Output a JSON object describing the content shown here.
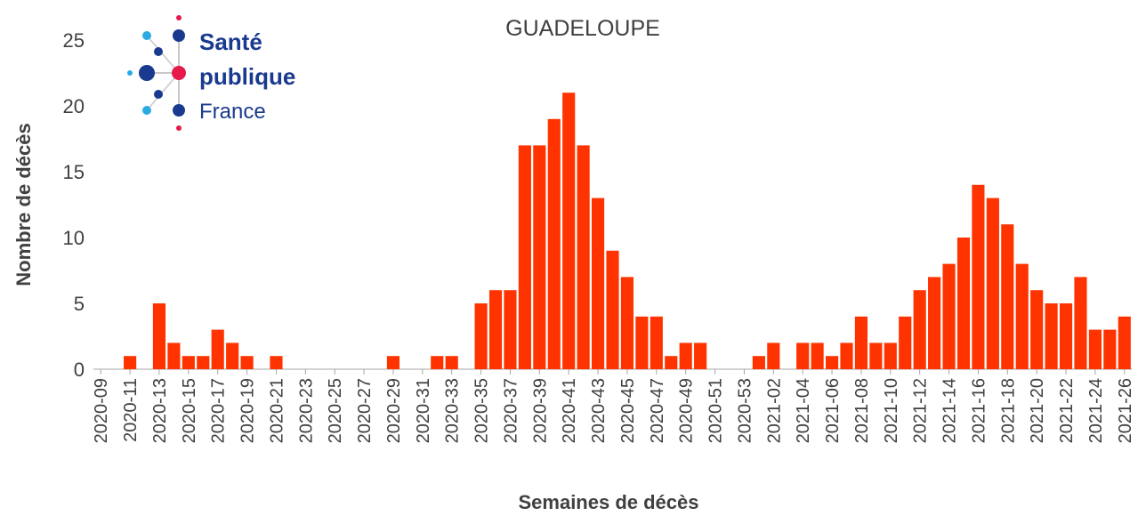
{
  "chart_data": {
    "type": "bar",
    "title": "GUADELOUPE",
    "logo": {
      "line1": "Santé",
      "line2": "publique",
      "line3": "France"
    },
    "x_label": "Semaines de décès",
    "y_label": "Nombre de décès",
    "categories": [
      "2020-09",
      null,
      "2020-11",
      null,
      "2020-13",
      null,
      "2020-15",
      null,
      "2020-17",
      null,
      "2020-19",
      null,
      "2020-21",
      null,
      "2020-23",
      null,
      "2020-25",
      null,
      "2020-27",
      null,
      "2020-29",
      null,
      "2020-31",
      null,
      "2020-33",
      null,
      "2020-35",
      null,
      "2020-37",
      null,
      "2020-39",
      null,
      "2020-41",
      null,
      "2020-43",
      null,
      "2020-45",
      null,
      "2020-47",
      null,
      "2020-49",
      null,
      "2020-51",
      null,
      "2020-53",
      null,
      "2021-02",
      null,
      "2021-04",
      null,
      "2021-06",
      null,
      "2021-08",
      null,
      "2021-10",
      null,
      "2021-12",
      null,
      "2021-14",
      null,
      "2021-16",
      null,
      "2021-18",
      null,
      "2021-20",
      null,
      "2021-22",
      null,
      "2021-24",
      null,
      "2021-26"
    ],
    "values": [
      0,
      0,
      1,
      0,
      5,
      2,
      1,
      1,
      3,
      2,
      1,
      0,
      1,
      0,
      0,
      0,
      0,
      0,
      0,
      0,
      1,
      0,
      0,
      1,
      1,
      0,
      5,
      6,
      6,
      17,
      17,
      19,
      21,
      17,
      13,
      9,
      7,
      4,
      4,
      1,
      2,
      2,
      0,
      0,
      0,
      1,
      2,
      0,
      2,
      2,
      1,
      2,
      4,
      2,
      2,
      4,
      6,
      7,
      8,
      10,
      14,
      13,
      11,
      8,
      6,
      5,
      5,
      7,
      3,
      3,
      4
    ],
    "color": "#ff3300",
    "ylim": [
      0,
      25
    ],
    "yticks": [
      0,
      5,
      10,
      15,
      20,
      25
    ],
    "grid": false
  }
}
